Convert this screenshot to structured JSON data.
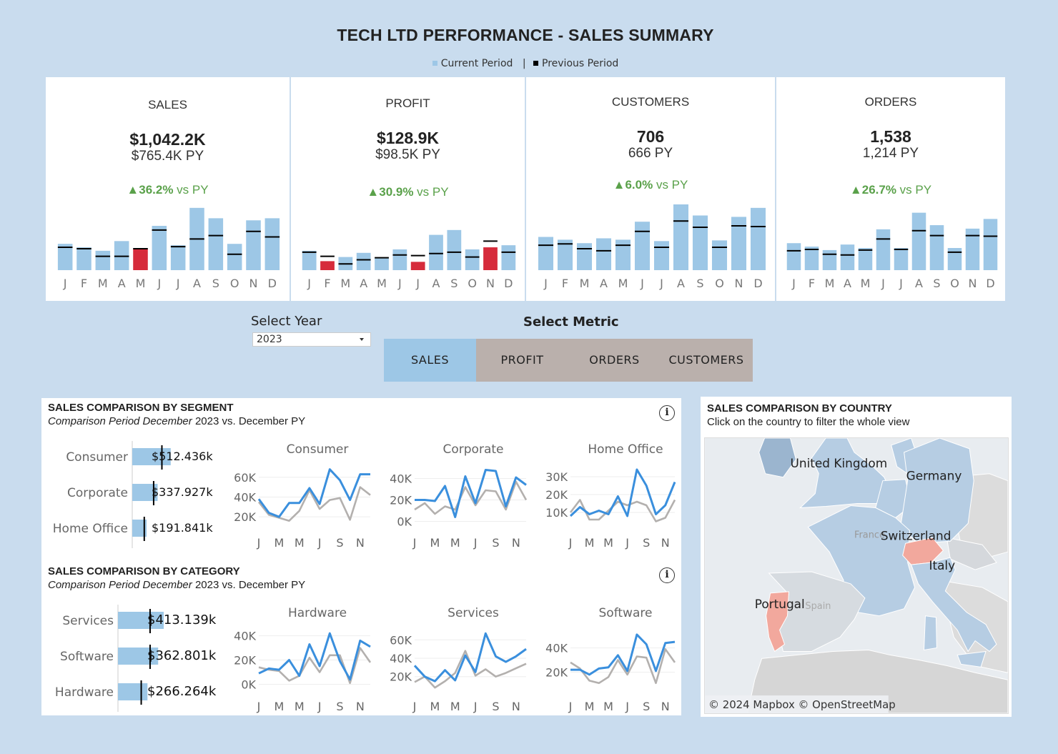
{
  "title": "TECH LTD PERFORMANCE - SALES SUMMARY",
  "legend": {
    "current": "Current Period",
    "separator": "|",
    "previous": "Previous Period",
    "current_color": "#9dc7e6",
    "previous_color": "#000000"
  },
  "kpis": [
    {
      "label": "SALES",
      "value": "$1,042.2K",
      "py": "$765.4K PY",
      "change_pct": "▲36.2%",
      "change_suffix": " vs PY",
      "months": [
        "J",
        "F",
        "M",
        "A",
        "M",
        "J",
        "J",
        "A",
        "S",
        "O",
        "N",
        "D"
      ],
      "current": [
        38,
        33,
        28,
        42,
        31,
        64,
        36,
        90,
        75,
        38,
        72,
        75
      ],
      "previous": [
        33,
        31,
        20,
        20,
        31,
        58,
        34,
        45,
        50,
        23,
        56,
        48
      ],
      "below": [
        false,
        false,
        false,
        false,
        true,
        false,
        false,
        false,
        false,
        false,
        false,
        false
      ]
    },
    {
      "label": "PROFIT",
      "value": "$128.9K",
      "py": "$98.5K PY",
      "change_pct": "▲30.9%",
      "change_suffix": " vs PY",
      "months": [
        "J",
        "F",
        "M",
        "A",
        "M",
        "J",
        "J",
        "A",
        "S",
        "O",
        "N",
        "D"
      ],
      "current": [
        28,
        13,
        19,
        25,
        17,
        30,
        12,
        51,
        58,
        30,
        33,
        36
      ],
      "previous": [
        26,
        20,
        9,
        15,
        18,
        22,
        21,
        24,
        26,
        19,
        42,
        26
      ],
      "below": [
        false,
        true,
        false,
        false,
        false,
        false,
        true,
        false,
        false,
        false,
        true,
        false
      ]
    },
    {
      "label": "CUSTOMERS",
      "value": "706",
      "py": "666 PY",
      "change_pct": "▲6.0%",
      "change_suffix": " vs PY",
      "months": [
        "J",
        "F",
        "M",
        "A",
        "M",
        "J",
        "J",
        "A",
        "S",
        "O",
        "N",
        "D"
      ],
      "current": [
        48,
        44,
        39,
        46,
        44,
        70,
        42,
        95,
        79,
        43,
        77,
        90
      ],
      "previous": [
        36,
        38,
        31,
        28,
        36,
        56,
        33,
        71,
        62,
        33,
        64,
        63
      ],
      "below": [
        false,
        false,
        false,
        false,
        false,
        false,
        false,
        false,
        false,
        false,
        false,
        false
      ]
    },
    {
      "label": "ORDERS",
      "value": "1,538",
      "py": "1,214 PY",
      "change_pct": "▲26.7%",
      "change_suffix": " vs PY",
      "months": [
        "J",
        "F",
        "M",
        "A",
        "M",
        "J",
        "J",
        "A",
        "S",
        "O",
        "N",
        "D"
      ],
      "current": [
        39,
        34,
        29,
        37,
        32,
        59,
        32,
        83,
        65,
        32,
        60,
        74
      ],
      "previous": [
        28,
        30,
        23,
        22,
        29,
        45,
        30,
        57,
        50,
        26,
        50,
        49
      ],
      "below": [
        false,
        false,
        false,
        false,
        false,
        false,
        false,
        false,
        false,
        false,
        false,
        false
      ]
    }
  ],
  "controls": {
    "year_label": "Select Year",
    "year_value": "2023",
    "metric_label": "Select Metric",
    "metrics": [
      {
        "label": "SALES",
        "active": true
      },
      {
        "label": "PROFIT",
        "active": false
      },
      {
        "label": "ORDERS",
        "active": false
      },
      {
        "label": "CUSTOMERS",
        "active": false
      }
    ]
  },
  "segment_section": {
    "title": "SALES COMPARISON BY SEGMENT",
    "subtitle_italic": "Comparison Period December",
    "subtitle_year": "2023",
    "subtitle_rest": "vs. December PY",
    "info": "i"
  },
  "category_section": {
    "title": "SALES COMPARISON BY CATEGORY",
    "subtitle_italic": "Comparison Period December",
    "subtitle_year": "2023",
    "subtitle_rest": "vs. December PY",
    "info": "i"
  },
  "country_section": {
    "title": "SALES COMPARISON BY COUNTRY",
    "subtitle": "Click on the country to filter the whole view",
    "credit": "© 2024 Mapbox © OpenStreetMap",
    "labels": [
      "United Kingdom",
      "Germany",
      "France",
      "Switzerland",
      "Italy",
      "Portugal",
      "Spain"
    ]
  },
  "chart_data": [
    {
      "type": "bar",
      "title": "SALES COMPARISON BY SEGMENT",
      "categories": [
        "Consumer",
        "Corporate",
        "Home Office"
      ],
      "values": [
        512.436,
        337.927,
        191.841
      ],
      "value_labels": [
        "$512.436k",
        "$337.927k",
        "$191.841k"
      ],
      "previous": [
        395,
        285,
        160
      ]
    },
    {
      "type": "line",
      "title": "Consumer",
      "x": [
        "J",
        "F",
        "M",
        "A",
        "M",
        "J",
        "J",
        "A",
        "S",
        "O",
        "N",
        "D"
      ],
      "x_ticks": [
        "J",
        "M",
        "M",
        "J",
        "S",
        "N"
      ],
      "y_ticks": [
        "60K",
        "40K",
        "20K"
      ],
      "ylim": [
        10,
        75
      ],
      "series": [
        {
          "values": [
            38,
            24,
            20,
            34,
            34,
            49,
            33,
            68,
            57,
            37,
            63,
            63
          ]
        },
        {
          "values": [
            35,
            22,
            19,
            16,
            26,
            47,
            28,
            37,
            39,
            17,
            50,
            42
          ]
        }
      ]
    },
    {
      "type": "line",
      "title": "Corporate",
      "x": [
        "J",
        "F",
        "M",
        "A",
        "M",
        "J",
        "J",
        "A",
        "S",
        "O",
        "N",
        "D"
      ],
      "x_ticks": [
        "J",
        "M",
        "M",
        "J",
        "S",
        "N"
      ],
      "y_ticks": [
        "40K",
        "20K",
        "0K"
      ],
      "ylim": [
        -5,
        55
      ],
      "series": [
        {
          "values": [
            20,
            20,
            19,
            33,
            4,
            42,
            17,
            48,
            47,
            14,
            41,
            34
          ]
        },
        {
          "values": [
            11,
            17,
            7,
            14,
            11,
            32,
            15,
            29,
            28,
            11,
            37,
            20
          ]
        }
      ]
    },
    {
      "type": "line",
      "title": "Home Office",
      "x": [
        "J",
        "F",
        "M",
        "A",
        "M",
        "J",
        "J",
        "A",
        "S",
        "O",
        "N",
        "D"
      ],
      "x_ticks": [
        "J",
        "M",
        "M",
        "J",
        "S",
        "N"
      ],
      "y_ticks": [
        "30K",
        "20K",
        "10K"
      ],
      "ylim": [
        2,
        38
      ],
      "series": [
        {
          "values": [
            8,
            13,
            9,
            11,
            9,
            19,
            8,
            34,
            25,
            9,
            14,
            27
          ]
        },
        {
          "values": [
            10,
            17,
            6,
            6,
            11,
            16,
            14,
            16,
            14,
            5,
            7,
            17
          ]
        }
      ]
    },
    {
      "type": "bar",
      "title": "SALES COMPARISON BY CATEGORY",
      "categories": [
        "Services",
        "Software",
        "Hardware"
      ],
      "values": [
        413.139,
        362.801,
        266.264
      ],
      "value_labels": [
        "$413.139k",
        "$362.801k",
        "$266.264k"
      ],
      "previous": [
        290,
        290,
        210
      ]
    },
    {
      "type": "line",
      "title": "Hardware",
      "x": [
        "J",
        "F",
        "M",
        "A",
        "M",
        "J",
        "J",
        "A",
        "S",
        "O",
        "N",
        "D"
      ],
      "x_ticks": [
        "J",
        "M",
        "M",
        "J",
        "S",
        "N"
      ],
      "y_ticks": [
        "40K",
        "20K",
        "0K"
      ],
      "ylim": [
        -5,
        48
      ],
      "series": [
        {
          "values": [
            9,
            13,
            12,
            20,
            7,
            33,
            15,
            42,
            19,
            4,
            36,
            31
          ]
        },
        {
          "values": [
            14,
            12,
            11,
            3,
            7,
            22,
            10,
            24,
            24,
            1,
            30,
            18
          ]
        }
      ]
    },
    {
      "type": "line",
      "title": "Services",
      "x": [
        "J",
        "F",
        "M",
        "A",
        "M",
        "J",
        "J",
        "A",
        "S",
        "O",
        "N",
        "D"
      ],
      "x_ticks": [
        "J",
        "M",
        "M",
        "J",
        "S",
        "N"
      ],
      "y_ticks": [
        "60K",
        "40K",
        "20K"
      ],
      "ylim": [
        5,
        75
      ],
      "series": [
        {
          "values": [
            32,
            20,
            15,
            27,
            16,
            43,
            25,
            67,
            42,
            36,
            42,
            50
          ]
        },
        {
          "values": [
            14,
            20,
            8,
            15,
            24,
            48,
            21,
            28,
            20,
            24,
            29,
            34
          ]
        }
      ]
    },
    {
      "type": "line",
      "title": "Software",
      "x": [
        "J",
        "F",
        "M",
        "A",
        "M",
        "J",
        "J",
        "A",
        "S",
        "O",
        "N",
        "D"
      ],
      "x_ticks": [
        "J",
        "M",
        "M",
        "J",
        "S",
        "N"
      ],
      "y_ticks": [
        "40K",
        "20K"
      ],
      "ylim": [
        5,
        58
      ],
      "series": [
        {
          "values": [
            22,
            22,
            18,
            23,
            24,
            34,
            21,
            51,
            43,
            21,
            44,
            45
          ]
        },
        {
          "values": [
            28,
            23,
            13,
            11,
            16,
            30,
            18,
            33,
            32,
            11,
            39,
            28
          ]
        }
      ]
    }
  ]
}
